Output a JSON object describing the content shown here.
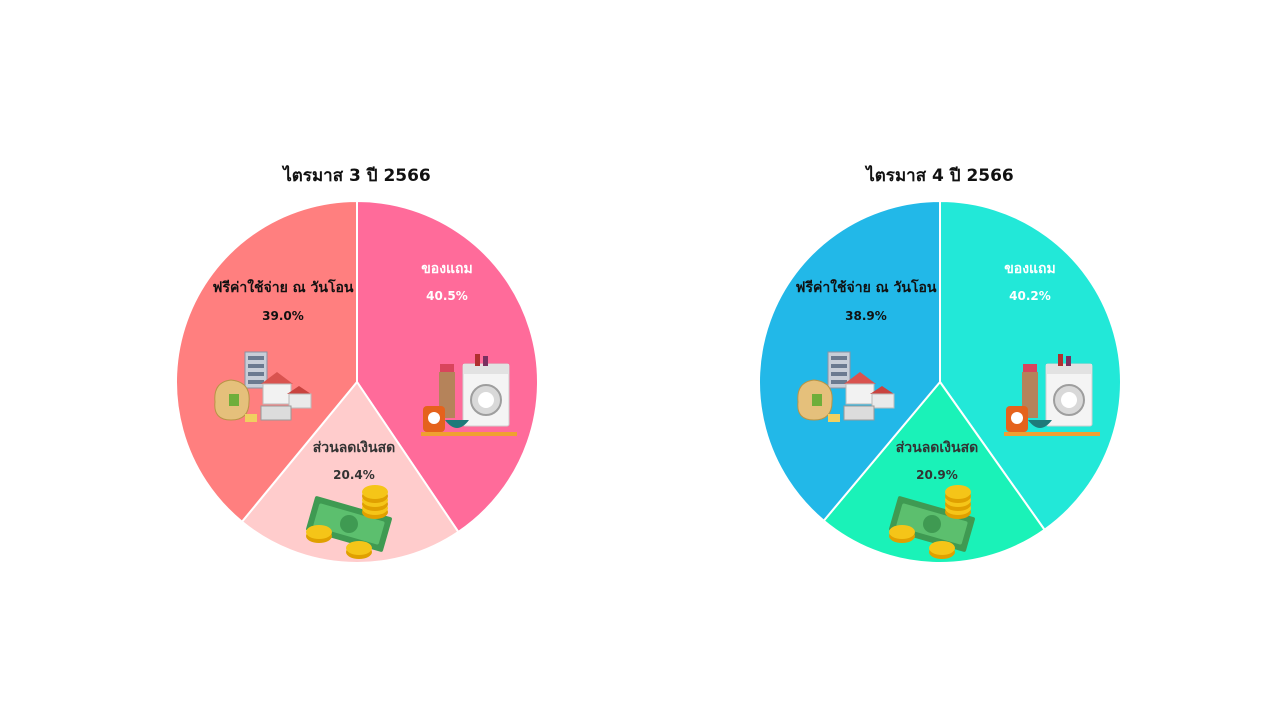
{
  "chart_data": [
    {
      "type": "pie",
      "title": "ไตรมาส 3 ปี 2566",
      "slices": [
        {
          "label": "ของแถม",
          "value": 40.5,
          "value_label": "40.5%",
          "color": "#ff6b9a",
          "text_color": "#ffffff",
          "icon": "appliances-icon"
        },
        {
          "label": "ส่วนลดเงินสด",
          "value": 20.4,
          "value_label": "20.4%",
          "color": "#ffcccc",
          "text_color": "#333333",
          "icon": "cash-coins-icon"
        },
        {
          "label": "ฟรีค่าใช้จ่าย ณ วันโอน",
          "value": 39.0,
          "value_label": "39.0%",
          "color": "#ff7f7f",
          "text_color": "#111111",
          "icon": "property-money-bag-icon"
        }
      ]
    },
    {
      "type": "pie",
      "title": "ไตรมาส 4 ปี 2566",
      "slices": [
        {
          "label": "ของแถม",
          "value": 40.2,
          "value_label": "40.2%",
          "color": "#22e8d8",
          "text_color": "#ffffff",
          "icon": "appliances-icon"
        },
        {
          "label": "ส่วนลดเงินสด",
          "value": 20.9,
          "value_label": "20.9%",
          "color": "#1af2b8",
          "text_color": "#333333",
          "icon": "cash-coins-icon"
        },
        {
          "label": "ฟรีค่าใช้จ่าย ณ วันโอน",
          "value": 38.9,
          "value_label": "38.9%",
          "color": "#22b8e8",
          "text_color": "#111111",
          "icon": "property-money-bag-icon"
        }
      ]
    }
  ]
}
